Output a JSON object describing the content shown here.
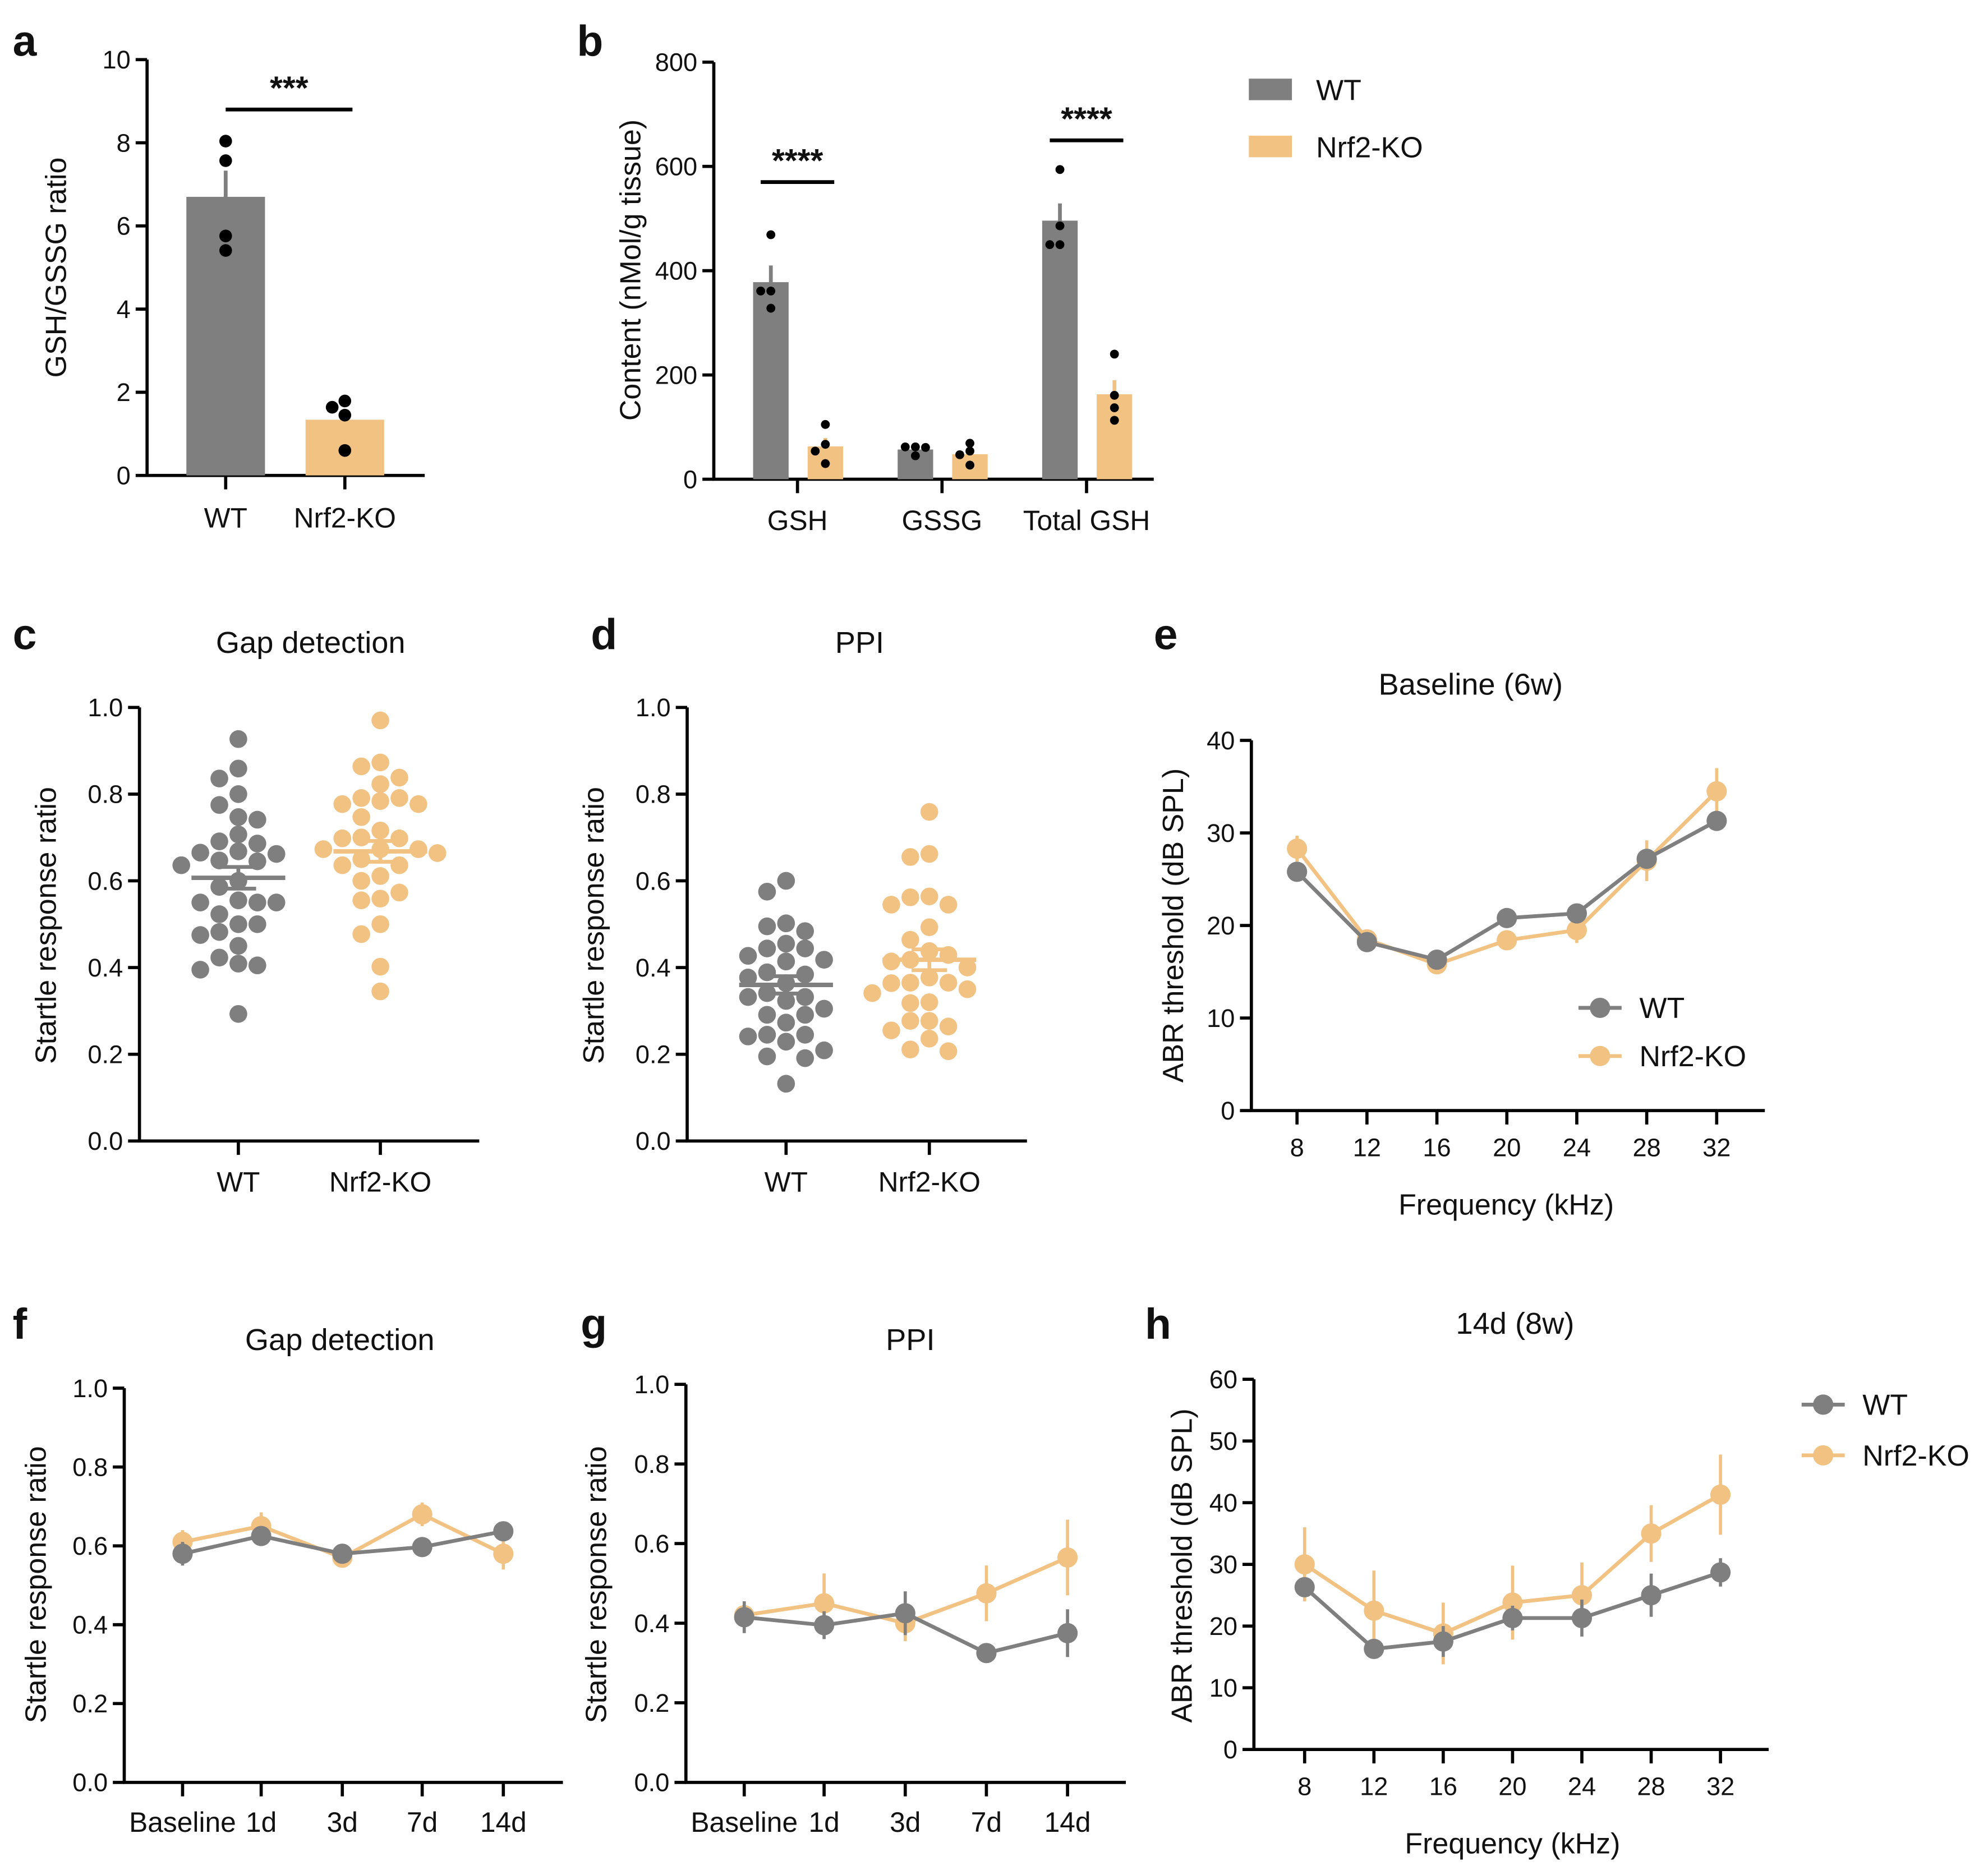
{
  "colors": {
    "WT": "#7F7F7F",
    "Nrf2-KO": "#F2C283",
    "points": "#000000"
  },
  "chart_data": [
    {
      "panel": "a",
      "letter": "a",
      "type": "bar",
      "ylabel": "GSH/GSSG ratio",
      "ylim": [
        0,
        10
      ],
      "yticks": [
        "0",
        "2",
        "4",
        "6",
        "8",
        "10"
      ],
      "categories": [
        "WT",
        "Nrf2-KO"
      ],
      "series": [
        {
          "values": [
            6.7,
            1.34
          ],
          "sem": [
            0.63,
            0.2
          ],
          "points": [
            [
              8.04,
              7.57,
              5.76,
              5.41
            ],
            [
              1.79,
              1.64,
              1.45,
              0.6
            ]
          ]
        }
      ],
      "significance": [
        {
          "label": "***",
          "groups": [
            "WT",
            "Nrf2-KO"
          ]
        }
      ]
    },
    {
      "panel": "b",
      "letter": "b",
      "type": "bar",
      "ylabel": "Content (nMol/g tissue)",
      "ylim": [
        0,
        800
      ],
      "yticks": [
        "0",
        "200",
        "400",
        "600",
        "800"
      ],
      "categories": [
        "GSH",
        "GSSG",
        "Total GSH"
      ],
      "series": [
        {
          "name": "WT",
          "values": [
            378,
            57,
            496
          ],
          "sem": [
            32,
            4,
            33
          ],
          "points": [
            [
              469,
              361,
              361,
              328
            ],
            [
              62,
              62,
              61,
              45
            ],
            [
              594,
              486,
              450,
              450
            ]
          ]
        },
        {
          "name": "Nrf2-KO",
          "values": [
            63,
            48,
            163
          ],
          "sem": [
            16,
            9,
            27
          ],
          "points": [
            [
              105,
              67,
              54,
              30
            ],
            [
              69,
              54,
              47,
              27
            ],
            [
              240,
              161,
              137,
              113
            ]
          ]
        }
      ],
      "significance": [
        {
          "label": "****",
          "category": "GSH"
        },
        {
          "label": "****",
          "category": "Total GSH"
        }
      ],
      "legend": "top-right"
    },
    {
      "panel": "c",
      "letter": "c",
      "type": "scatter",
      "title": "Gap detection",
      "ylabel": "Startle response ratio",
      "ylim": [
        0,
        1
      ],
      "yticks": [
        "0.0",
        "0.2",
        "0.4",
        "0.6",
        "0.8",
        "1.0"
      ],
      "categories": [
        "WT",
        "Nrf2-KO"
      ],
      "series": [
        {
          "mean": 0.607,
          "sem": 0.025,
          "points": [
            0.927,
            0.859,
            0.836,
            0.8,
            0.775,
            0.747,
            0.741,
            0.707,
            0.686,
            0.691,
            0.662,
            0.665,
            0.668,
            0.647,
            0.645,
            0.636,
            0.586,
            0.6,
            0.55,
            0.55,
            0.555,
            0.55,
            0.523,
            0.5,
            0.5,
            0.482,
            0.475,
            0.45,
            0.423,
            0.409,
            0.395,
            0.405,
            0.293
          ]
        },
        {
          "mean": 0.668,
          "sem": 0.024,
          "points": [
            0.97,
            0.873,
            0.864,
            0.838,
            0.823,
            0.791,
            0.791,
            0.777,
            0.777,
            0.784,
            0.747,
            0.716,
            0.698,
            0.698,
            0.7,
            0.673,
            0.673,
            0.673,
            0.664,
            0.65,
            0.636,
            0.636,
            0.611,
            0.6,
            0.573,
            0.555,
            0.559,
            0.5,
            0.477,
            0.402,
            0.345
          ]
        }
      ]
    },
    {
      "panel": "d",
      "letter": "d",
      "type": "scatter",
      "title": "PPI",
      "ylabel": "Startle response ratio",
      "ylim": [
        0,
        1
      ],
      "yticks": [
        "0.0",
        "0.2",
        "0.4",
        "0.6",
        "0.8",
        "1.0"
      ],
      "categories": [
        "WT",
        "Nrf2-KO"
      ],
      "series": [
        {
          "mean": 0.36,
          "sem": 0.02,
          "points": [
            0.6,
            0.575,
            0.502,
            0.495,
            0.484,
            0.444,
            0.444,
            0.427,
            0.455,
            0.418,
            0.414,
            0.389,
            0.377,
            0.384,
            0.364,
            0.332,
            0.332,
            0.341,
            0.323,
            0.305,
            0.291,
            0.291,
            0.273,
            0.245,
            0.245,
            0.241,
            0.229,
            0.209,
            0.191,
            0.195,
            0.132
          ]
        },
        {
          "mean": 0.418,
          "sem": 0.024,
          "points": [
            0.759,
            0.655,
            0.662,
            0.562,
            0.564,
            0.545,
            0.545,
            0.493,
            0.464,
            0.438,
            0.429,
            0.418,
            0.4,
            0.414,
            0.377,
            0.365,
            0.365,
            0.364,
            0.35,
            0.341,
            0.32,
            0.318,
            0.277,
            0.277,
            0.255,
            0.264,
            0.236,
            0.207,
            0.211
          ]
        }
      ]
    },
    {
      "panel": "e",
      "letter": "e",
      "type": "line",
      "title": "Baseline (6w)",
      "xlabel": "Frequency (kHz)",
      "ylabel": "ABR threshold (dB SPL)",
      "ylim": [
        0,
        40
      ],
      "yticks": [
        "0",
        "10",
        "20",
        "30",
        "40"
      ],
      "x": [
        "8",
        "12",
        "16",
        "20",
        "24",
        "28",
        "32"
      ],
      "series": [
        {
          "name": "WT",
          "values": [
            25.8,
            18.2,
            16.3,
            20.8,
            21.3,
            27.2,
            31.3
          ],
          "sem": [
            0.7,
            0.6,
            0.6,
            0.6,
            0.6,
            0.8,
            0.8
          ]
        },
        {
          "name": "Nrf2-KO",
          "values": [
            28.3,
            18.5,
            15.8,
            18.4,
            19.5,
            27.0,
            34.5
          ],
          "sem": [
            1.4,
            0.6,
            0.8,
            0.7,
            1.4,
            2.2,
            2.5
          ]
        }
      ],
      "legend": "bottom-right"
    },
    {
      "panel": "f",
      "letter": "f",
      "type": "line",
      "title": "Gap detection",
      "ylabel": "Startle response ratio",
      "ylim": [
        0,
        1
      ],
      "yticks": [
        "0.0",
        "0.2",
        "0.4",
        "0.6",
        "0.8",
        "1.0"
      ],
      "categories": [
        "Baseline",
        "1d",
        "3d",
        "7d",
        "14d"
      ],
      "series": [
        {
          "values": [
            0.58,
            0.625,
            0.58,
            0.597,
            0.637
          ],
          "sem": [
            0.03,
            0.025,
            0.02,
            0.015,
            0.015
          ]
        },
        {
          "values": [
            0.61,
            0.65,
            0.57,
            0.68,
            0.58
          ],
          "sem": [
            0.03,
            0.035,
            0.02,
            0.03,
            0.04
          ]
        }
      ]
    },
    {
      "panel": "g",
      "letter": "g",
      "type": "line",
      "title": "PPI",
      "ylabel": "Startle response ratio",
      "ylim": [
        0,
        1
      ],
      "yticks": [
        "0.0",
        "0.2",
        "0.4",
        "0.6",
        "0.8",
        "1.0"
      ],
      "categories": [
        "Baseline",
        "1d",
        "3d",
        "7d",
        "14d"
      ],
      "series": [
        {
          "values": [
            0.415,
            0.395,
            0.425,
            0.325,
            0.375
          ],
          "sem": [
            0.04,
            0.035,
            0.055,
            0.015,
            0.06
          ]
        },
        {
          "values": [
            0.42,
            0.45,
            0.4,
            0.475,
            0.565
          ],
          "sem": [
            0.02,
            0.075,
            0.045,
            0.07,
            0.095
          ]
        }
      ]
    },
    {
      "panel": "h",
      "letter": "h",
      "type": "line",
      "title": "14d (8w)",
      "xlabel": "Frequency (kHz)",
      "ylabel": "ABR threshold (dB SPL)",
      "ylim": [
        0,
        60
      ],
      "yticks": [
        "0",
        "10",
        "20",
        "30",
        "40",
        "50",
        "60"
      ],
      "x": [
        "8",
        "12",
        "16",
        "20",
        "24",
        "28",
        "32"
      ],
      "series": [
        {
          "name": "WT",
          "values": [
            26.3,
            16.3,
            17.5,
            21.3,
            21.3,
            25.0,
            28.7
          ],
          "sem": [
            1.5,
            0.8,
            2.5,
            2.0,
            3.0,
            3.5,
            2.3
          ]
        },
        {
          "name": "Nrf2-KO",
          "values": [
            30.0,
            22.5,
            18.8,
            23.8,
            25.0,
            35.0,
            41.3
          ],
          "sem": [
            6.0,
            6.5,
            5.0,
            6.0,
            5.3,
            4.6,
            6.5
          ]
        }
      ],
      "legend": "right"
    }
  ]
}
